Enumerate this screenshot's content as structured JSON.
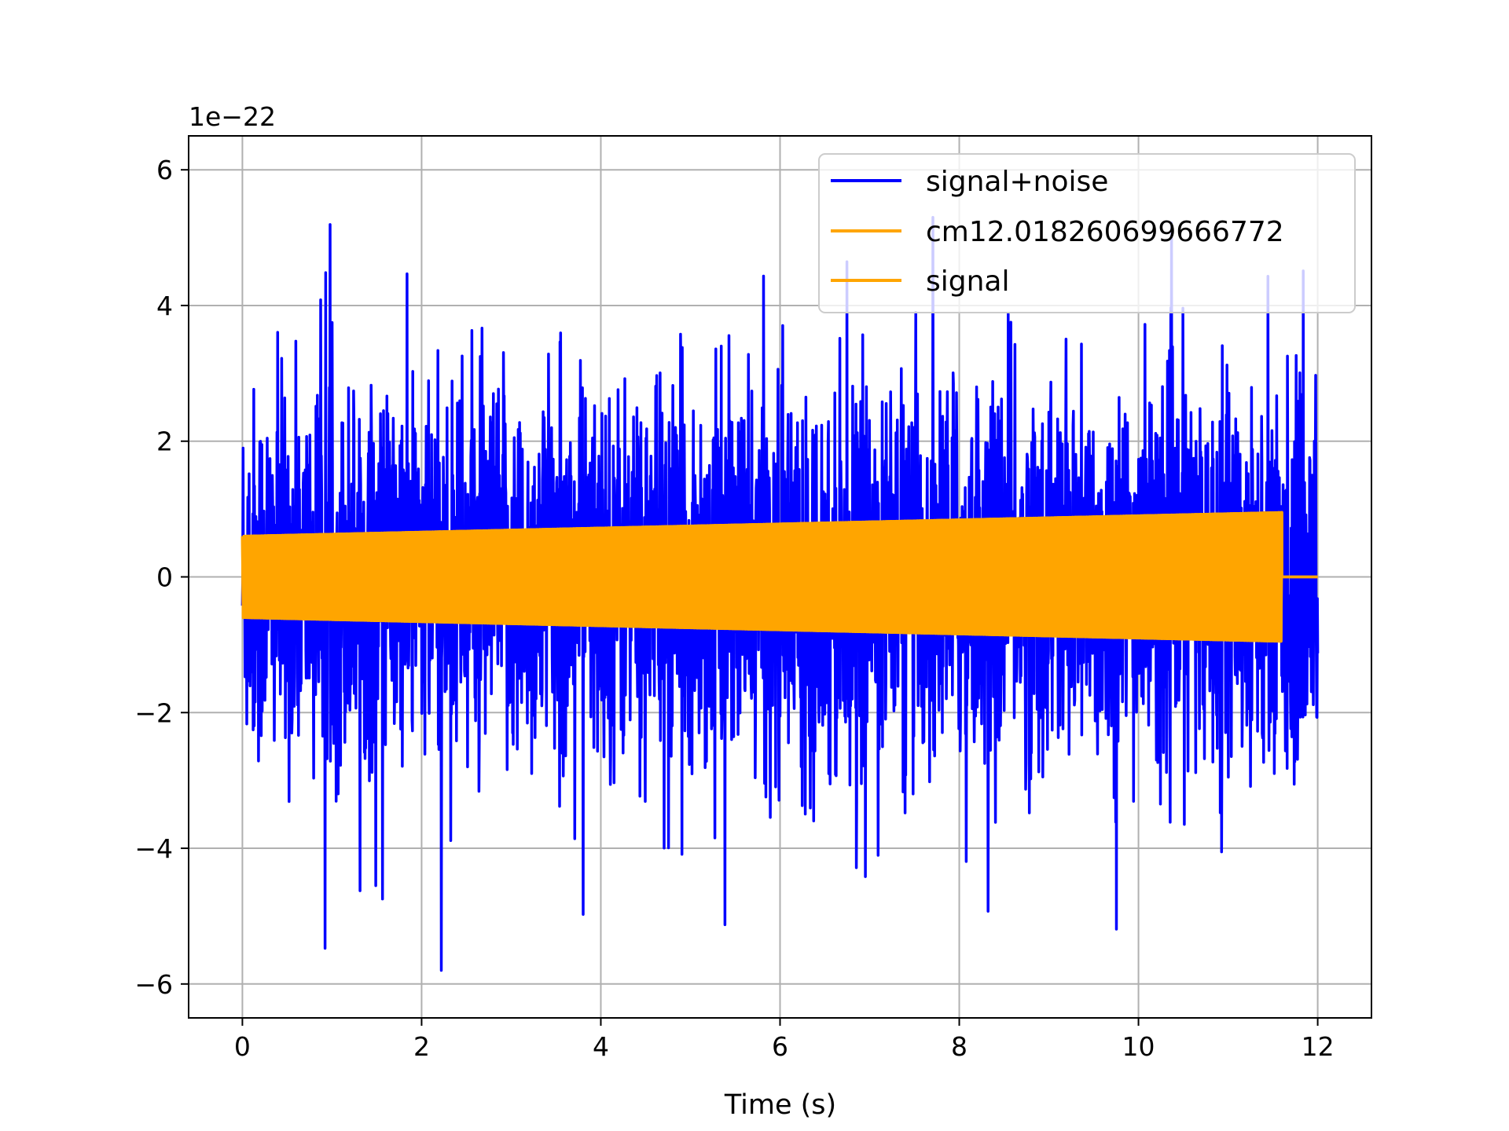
{
  "chart_data": {
    "type": "line",
    "title": "",
    "xlabel": "Time (s)",
    "ylabel": "",
    "y_offset_label": "1e−22",
    "y_multiplier": 1e-22,
    "xlim": [
      -0.6,
      12.6
    ],
    "ylim": [
      -6.5,
      6.5
    ],
    "x_ticks": [
      0,
      2,
      4,
      6,
      8,
      10,
      12
    ],
    "x_tick_labels": [
      "0",
      "2",
      "4",
      "6",
      "8",
      "10",
      "12"
    ],
    "y_ticks": [
      -6,
      -4,
      -2,
      0,
      2,
      4,
      6
    ],
    "y_tick_labels": [
      "−6",
      "−4",
      "−2",
      "0",
      "2",
      "4",
      "6"
    ],
    "grid": true,
    "legend_position": "upper right",
    "series": [
      {
        "name": "signal+noise",
        "color": "#0000ff",
        "description": "dense noisy time series spanning 0 to 12 s",
        "x_range": [
          0,
          12
        ],
        "typical_amplitude": 2.2,
        "peak_max": 5.3,
        "peak_min": -5.8
      },
      {
        "name": "cm12.018260699666772",
        "color": "#ffa500",
        "x_range": [
          0,
          11.6
        ],
        "start_amplitude": 0.6,
        "end_amplitude": 0.95,
        "x_zero_tail": [
          11.6,
          12
        ]
      },
      {
        "name": "signal",
        "color": "#ffa500",
        "x_range": [
          0,
          11.6
        ],
        "start_amplitude": 0.6,
        "end_amplitude": 0.95,
        "x_zero_tail": [
          11.6,
          12
        ]
      }
    ]
  }
}
